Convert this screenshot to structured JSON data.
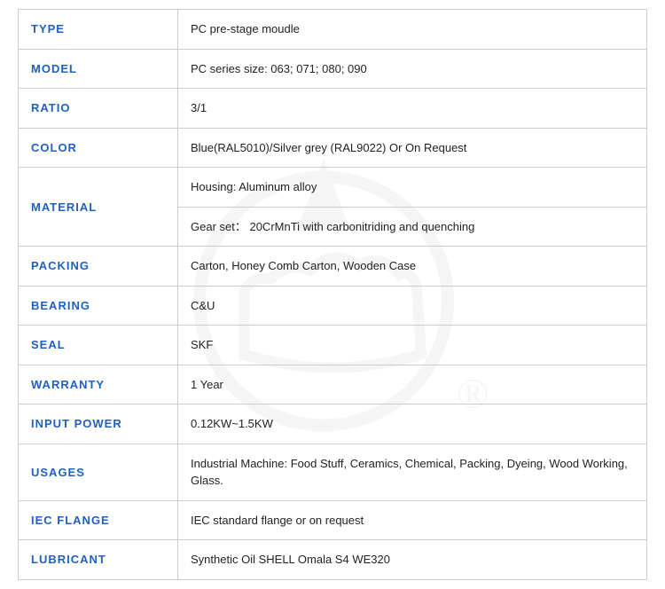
{
  "table": {
    "label_color": "#2060c0",
    "border_color": "#cccccc",
    "text_color": "#222222",
    "label_width": 180,
    "font_size": 13,
    "rows": [
      {
        "label": "TYPE",
        "value": "PC pre-stage moudle",
        "rowspan": 1
      },
      {
        "label": "MODEL",
        "value": "PC series size: 063; 071; 080; 090",
        "rowspan": 1
      },
      {
        "label": "RATIO",
        "value": " 3/1",
        "rowspan": 1
      },
      {
        "label": "COLOR",
        "value": "Blue(RAL5010)/Silver grey (RAL9022) Or On Request",
        "rowspan": 1
      },
      {
        "label": "MATERIAL",
        "value": "Housing: Aluminum alloy",
        "rowspan": 2
      },
      {
        "label": "",
        "value": "Gear set： 20CrMnTi with carbonitriding and quenching",
        "rowspan": 0
      },
      {
        "label": "PACKING",
        "value": "Carton, Honey Comb Carton, Wooden Case",
        "rowspan": 1
      },
      {
        "label": "BEARING",
        "value": "C&U",
        "rowspan": 1
      },
      {
        "label": "SEAL",
        "value": "SKF",
        "rowspan": 1
      },
      {
        "label": "WARRANTY",
        "value": "1 Year",
        "rowspan": 1
      },
      {
        "label": "INPUT POWER",
        "value": "0.12KW~1.5KW",
        "rowspan": 1
      },
      {
        "label": "USAGES",
        "value": "Industrial Machine: Food Stuff, Ceramics, Chemical, Packing, Dyeing, Wood Working, Glass.",
        "rowspan": 1
      },
      {
        "label": "IEC FLANGE",
        "value": "IEC standard flange or on request",
        "rowspan": 1
      },
      {
        "label": "LUBRICANT",
        "value": "Synthetic Oil SHELL Omala S4 WE320",
        "rowspan": 1
      }
    ]
  },
  "watermark": {
    "color": "#888888",
    "stroke_width": 14
  }
}
